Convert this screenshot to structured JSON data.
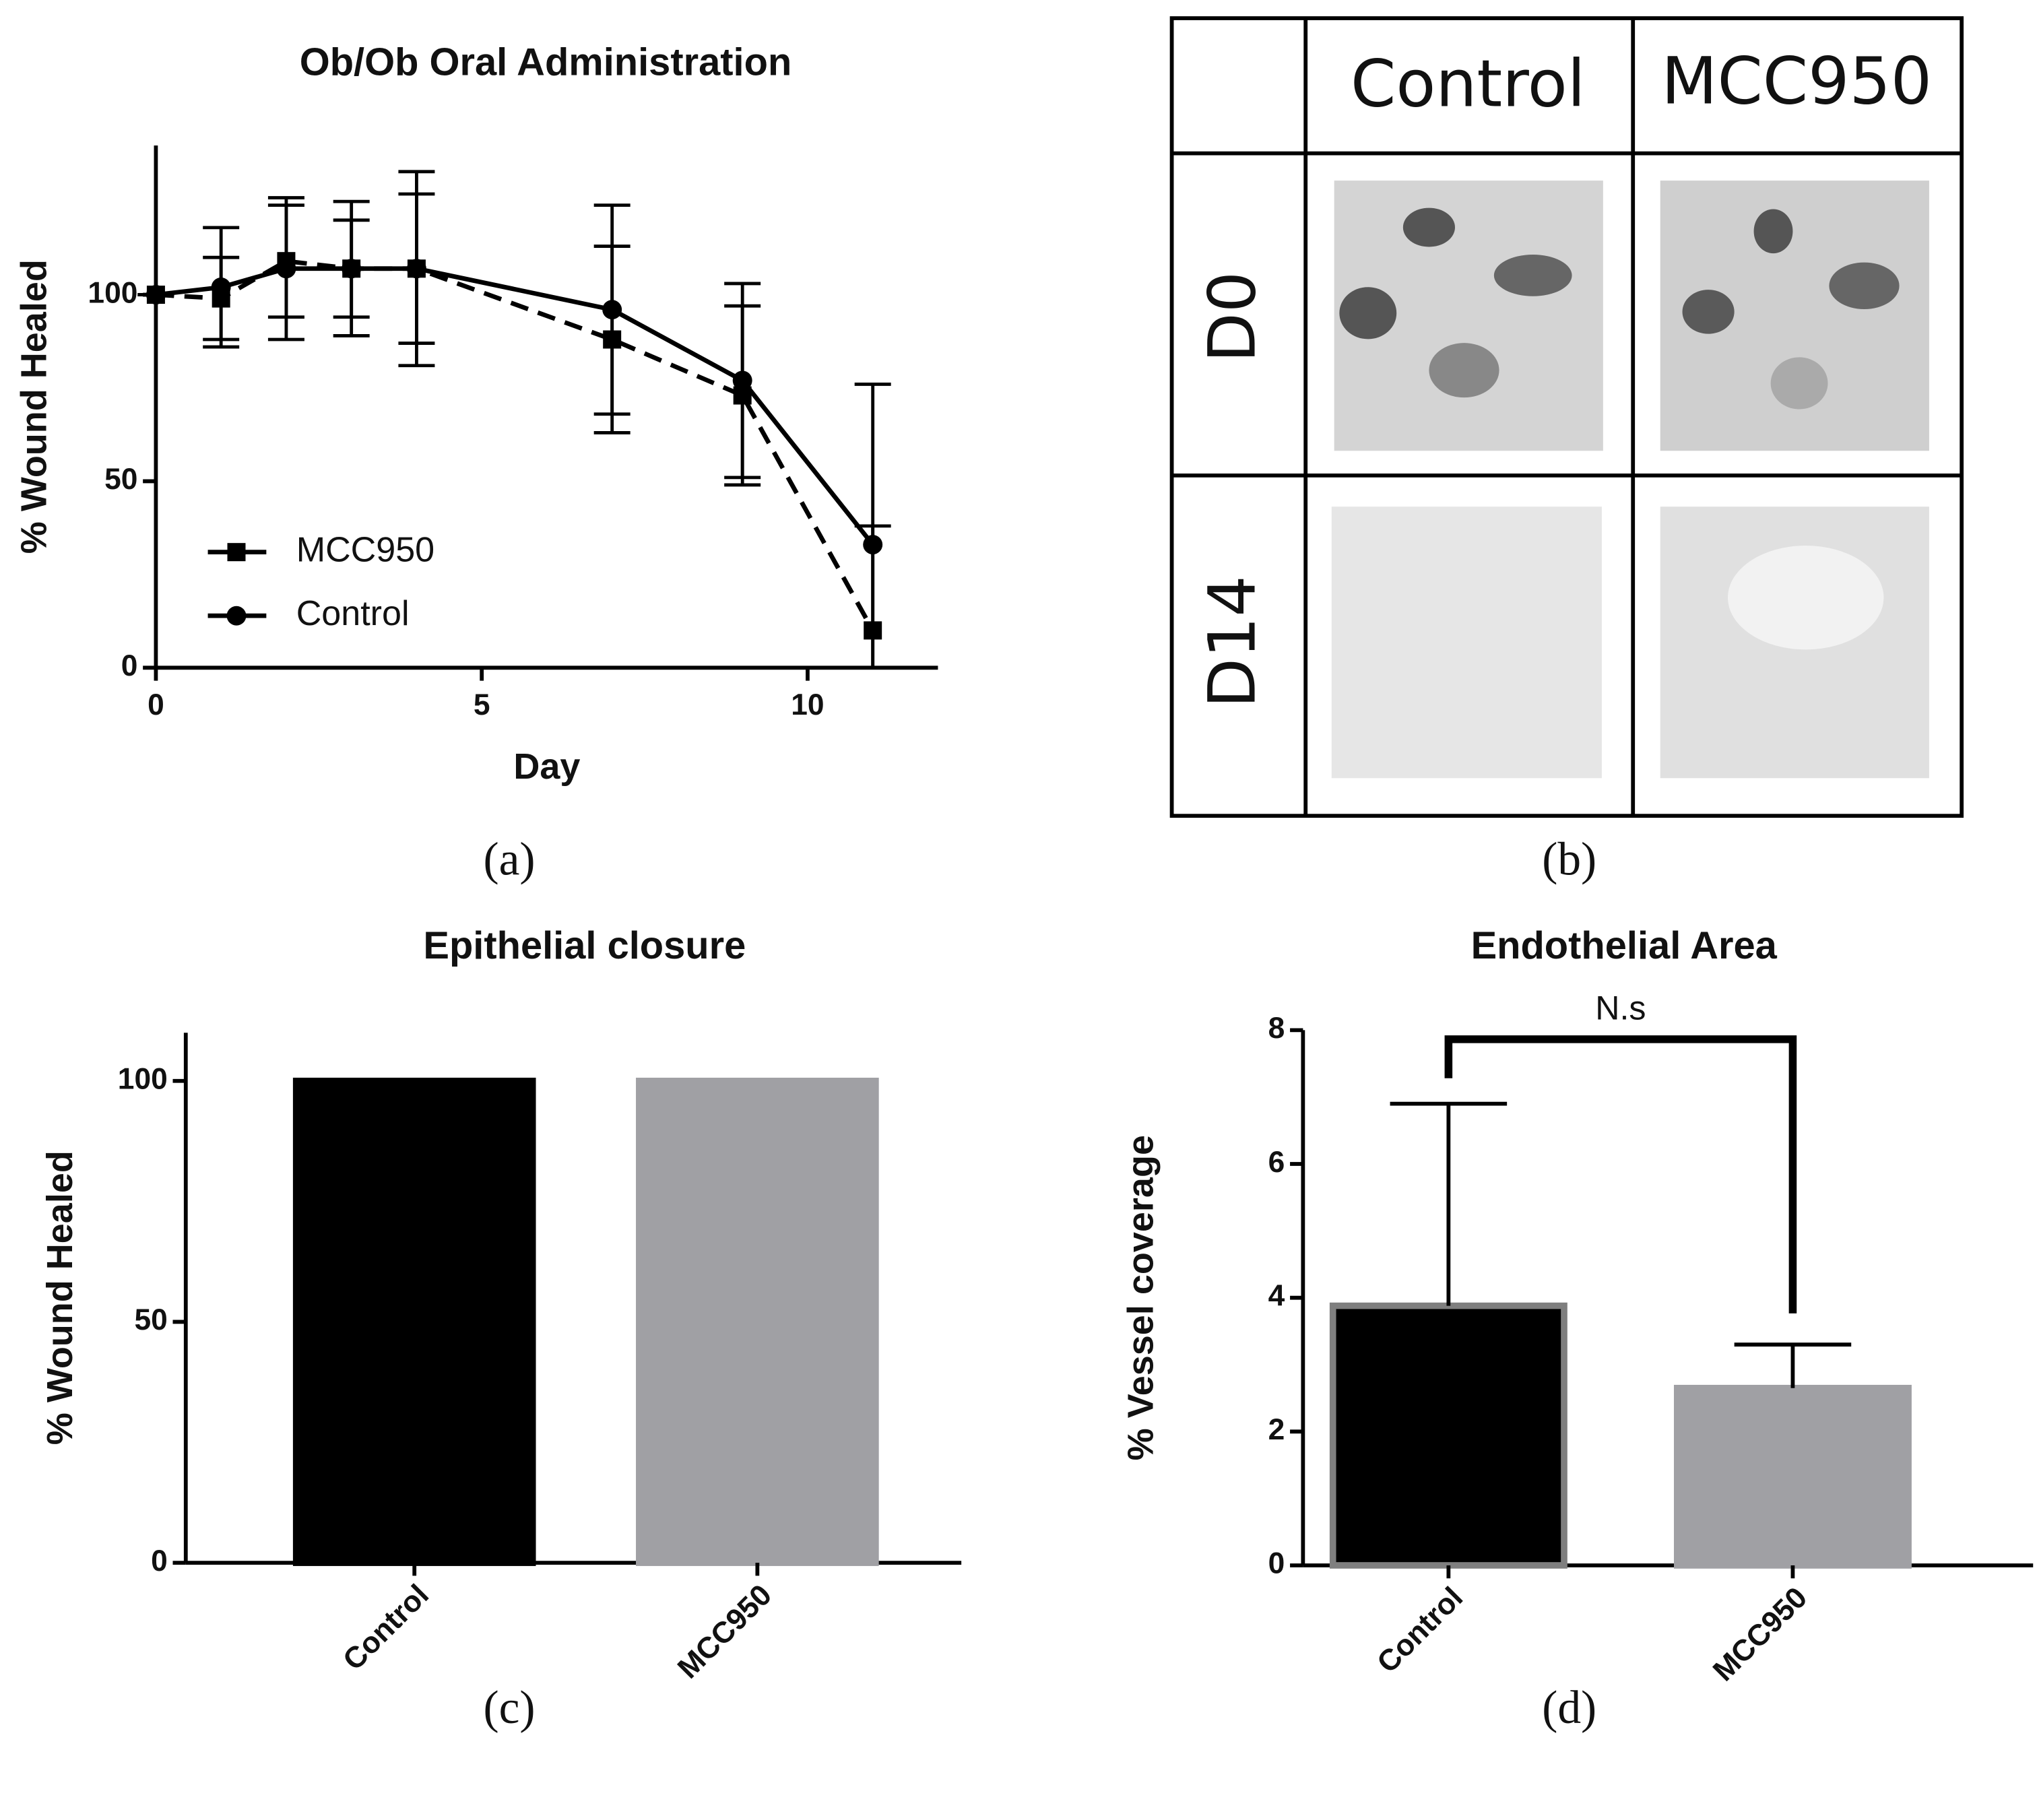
{
  "chart_data": [
    {
      "type": "line",
      "title": "Ob/Ob Oral Administration",
      "xlabel": "Day",
      "ylabel": "% Wound Healed",
      "x": [
        0,
        1,
        2,
        3,
        4,
        7,
        9,
        11
      ],
      "series": [
        {
          "name": "MCC950",
          "color": "#000000",
          "linestyle": "dashed",
          "marker": "square",
          "values": [
            100,
            99,
            109,
            107,
            107,
            88,
            73,
            10
          ],
          "errors": [
            0,
            11,
            15,
            13,
            20,
            25,
            24,
            28
          ]
        },
        {
          "name": "Control",
          "color": "#000000",
          "linestyle": "solid",
          "marker": "circle",
          "values": [
            100,
            102,
            107,
            107,
            107,
            96,
            77,
            33
          ],
          "errors": [
            0,
            16,
            19,
            18,
            26,
            28,
            26,
            43
          ]
        }
      ],
      "xlim": [
        0,
        12
      ],
      "xticks": [
        0,
        5,
        10
      ],
      "ylim": [
        0,
        140
      ],
      "yticks": [
        0,
        50,
        100
      ],
      "legend": "lower left"
    },
    {
      "type": "bar",
      "title": "Epithelial closure",
      "ylabel": "% Wound Healed",
      "categories": [
        "Control",
        "MCC950"
      ],
      "values": [
        100,
        100
      ],
      "colors": [
        "#000000",
        "#a0a0a4"
      ],
      "ylim": [
        0,
        110
      ],
      "yticks": [
        0,
        50,
        100
      ]
    },
    {
      "type": "bar",
      "title": "Endothelial Area",
      "ylabel": "% Vessel coverage",
      "annotation": "N.s",
      "categories": [
        "Control",
        "MCC950"
      ],
      "values": [
        3.88,
        2.65
      ],
      "errors": [
        3.02,
        0.65
      ],
      "colors": [
        "#000000",
        "#a0a0a4"
      ],
      "edgecolors": [
        "#7f7f7f",
        "#a0a0a4"
      ],
      "ylim": [
        0,
        8
      ],
      "yticks": [
        0,
        2,
        4,
        6,
        8
      ]
    }
  ],
  "figure_b": {
    "columns": [
      "Control",
      "MCC950"
    ],
    "rows": [
      "D0",
      "D14"
    ]
  },
  "panel_labels": [
    "(a)",
    "(b)",
    "(c)",
    "(d)"
  ]
}
